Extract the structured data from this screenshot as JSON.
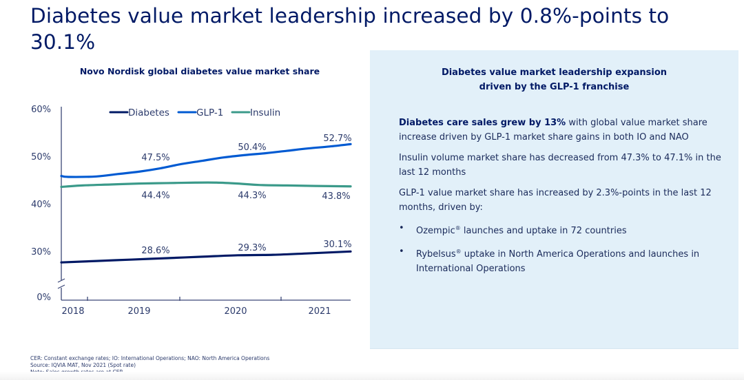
{
  "slide": {
    "title": "Diabetes value market leadership increased by 0.8%-points to 30.1%"
  },
  "chart_data": {
    "type": "line",
    "title": "Novo Nordisk global diabetes value market share",
    "xlabel": "",
    "ylabel": "",
    "y_ticks": [
      "60%",
      "50%",
      "40%",
      "30%",
      "0%"
    ],
    "y_tick_values": [
      60,
      50,
      40,
      30,
      0
    ],
    "ylim": [
      0,
      60
    ],
    "y_axis_break": "between 0% and 30%",
    "x_ticks": [
      "2018",
      "2019",
      "2020",
      "2021"
    ],
    "x_range": [
      2017.8,
      2021.9
    ],
    "grid": false,
    "legend": "top-center",
    "series": [
      {
        "name": "Diabetes",
        "color": "#001965",
        "x": [
          2017.8,
          2018.3,
          2018.8,
          2019.3,
          2019.8,
          2020.3,
          2020.8,
          2021.3,
          2021.9
        ],
        "values": [
          27.8,
          28.1,
          28.4,
          28.7,
          29.0,
          29.3,
          29.4,
          29.7,
          30.1
        ],
        "labels": [
          {
            "x": 2019.0,
            "value": 28.6,
            "text": "28.6%"
          },
          {
            "x": 2020.0,
            "value": 29.3,
            "text": "29.3%"
          },
          {
            "x": 2021.0,
            "value": 30.1,
            "text": "30.1%"
          }
        ]
      },
      {
        "name": "GLP-1",
        "color": "#005ad2",
        "x": [
          2017.8,
          2017.9,
          2018.3,
          2018.6,
          2018.9,
          2019.2,
          2019.5,
          2019.8,
          2020.1,
          2020.4,
          2020.7,
          2021.0,
          2021.3,
          2021.6,
          2021.9
        ],
        "values": [
          46.0,
          45.8,
          45.9,
          46.4,
          46.9,
          47.6,
          48.5,
          49.2,
          49.9,
          50.4,
          50.8,
          51.3,
          51.8,
          52.2,
          52.7
        ],
        "labels": [
          {
            "x": 2019.0,
            "value": 47.5,
            "text": "47.5%"
          },
          {
            "x": 2020.0,
            "value": 50.4,
            "text": "50.4%"
          },
          {
            "x": 2021.0,
            "value": 52.7,
            "text": "52.7%"
          }
        ]
      },
      {
        "name": "Insulin",
        "color": "#3b9a8a",
        "x": [
          2017.8,
          2018.1,
          2018.5,
          2018.9,
          2019.3,
          2019.7,
          2020.0,
          2020.3,
          2020.6,
          2021.0,
          2021.4,
          2021.9
        ],
        "values": [
          43.7,
          44.0,
          44.2,
          44.4,
          44.5,
          44.6,
          44.6,
          44.4,
          44.1,
          44.0,
          43.9,
          43.8
        ],
        "labels": [
          {
            "x": 2019.0,
            "value": 44.4,
            "text": "44.4%"
          },
          {
            "x": 2020.0,
            "value": 44.3,
            "text": "44.3%"
          },
          {
            "x": 2021.0,
            "value": 43.8,
            "text": "43.8%"
          }
        ]
      }
    ]
  },
  "panel": {
    "title_line1": "Diabetes value market leadership expansion",
    "title_line2": "driven by the GLP-1 franchise",
    "p1_bold": "Diabetes care sales grew by 13%",
    "p1_rest": " with global value market share increase driven by GLP-1 market share gains in both IO and NAO",
    "p2": "Insulin volume market share has decreased from 47.3% to 47.1% in the last 12 months",
    "p3": "GLP-1 value market share has increased by 2.3%-points in the last 12 months, driven by:",
    "bullets": [
      {
        "brand": "Ozempic",
        "mark": "®",
        "rest": " launches and uptake in 72 countries"
      },
      {
        "brand": "Rybelsus",
        "mark": "®",
        "rest": " uptake in North America Operations and launches in International Operations"
      }
    ],
    "bullet_char": "•"
  },
  "footnotes": [
    "CER: Constant exchange rates; IO: International Operations; NAO: North America Operations",
    "Source: IQVIA MAT, Nov 2021 (Spot rate)",
    "Note: Sales growth rates are at CER"
  ]
}
